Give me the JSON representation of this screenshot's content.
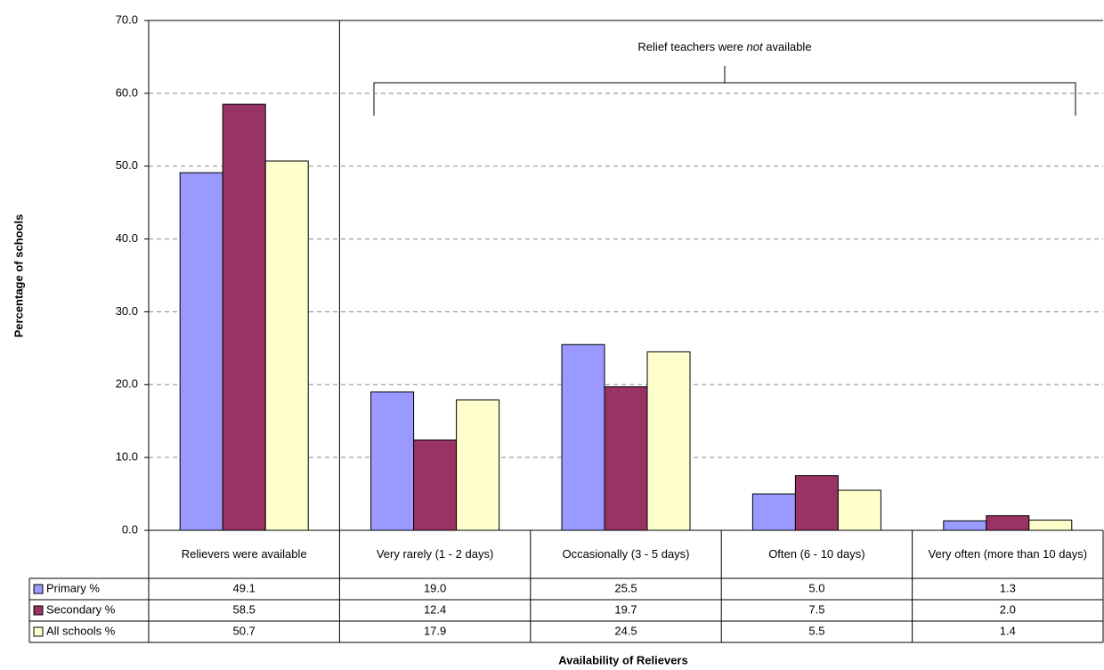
{
  "chart_data": {
    "type": "bar",
    "y_label": "Percentage of schools",
    "x_label": "Availability of Relievers",
    "annotation": [
      "Relief teachers were ",
      "not",
      " available"
    ],
    "categories": [
      "Relievers were available",
      "Very rarely (1 - 2 days)",
      "Occasionally (3 - 5 days)",
      "Often (6 - 10 days)",
      "Very often (more than 10 days)"
    ],
    "series": [
      {
        "name": "Primary %",
        "color": "#9999ff",
        "values": [
          49.1,
          19.0,
          25.5,
          5.0,
          1.3
        ],
        "value_labels": [
          "49.1",
          "19.0",
          "25.5",
          "5.0",
          "1.3"
        ]
      },
      {
        "name": "Secondary %",
        "color": "#993366",
        "values": [
          58.5,
          12.4,
          19.7,
          7.5,
          2.0
        ],
        "value_labels": [
          "58.5",
          "12.4",
          "19.7",
          "7.5",
          "2.0"
        ]
      },
      {
        "name": "All schools %",
        "color": "#ffffcc",
        "values": [
          50.7,
          17.9,
          24.5,
          5.5,
          1.4
        ],
        "value_labels": [
          "50.7",
          "17.9",
          "24.5",
          "5.5",
          "1.4"
        ]
      }
    ],
    "ylim": [
      0,
      70
    ],
    "yticks": [
      {
        "value": 0,
        "label": "0.0"
      },
      {
        "value": 10,
        "label": "10.0"
      },
      {
        "value": 20,
        "label": "20.0"
      },
      {
        "value": 30,
        "label": "30.0"
      },
      {
        "value": 40,
        "label": "40.0"
      },
      {
        "value": 50,
        "label": "50.0"
      },
      {
        "value": 60,
        "label": "60.0"
      },
      {
        "value": 70,
        "label": "70.0"
      }
    ],
    "grid": true
  }
}
